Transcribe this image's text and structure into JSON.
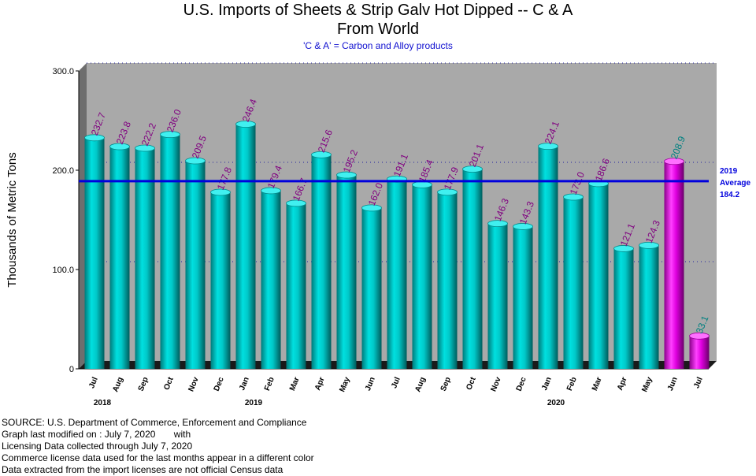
{
  "chart_data": {
    "type": "bar",
    "title": "U.S. Imports of Sheets & Strip Galv Hot Dipped -- C & A",
    "title_line2": "From World",
    "subtitle": "'C & A' = Carbon and Alloy products",
    "ylabel": "Thousands of Metric Tons",
    "ylim": [
      0,
      300
    ],
    "yticks": [
      "0",
      "100.0",
      "200.0",
      "300.0"
    ],
    "grid": true,
    "categories": [
      "Jul",
      "Aug",
      "Sep",
      "Oct",
      "Nov",
      "Dec",
      "Jan",
      "Feb",
      "Mar",
      "Apr",
      "May",
      "Jun",
      "Jul",
      "Aug",
      "Sep",
      "Oct",
      "Nov",
      "Dec",
      "Jan",
      "Feb",
      "Mar",
      "Apr",
      "May",
      "Jun",
      "Jul"
    ],
    "values": [
      232.7,
      223.8,
      222.2,
      236.0,
      209.5,
      177.8,
      246.4,
      179.4,
      166.7,
      215.6,
      195.2,
      162.0,
      191.1,
      185.4,
      177.9,
      201.1,
      146.3,
      143.3,
      224.1,
      173.0,
      186.6,
      121.1,
      124.3,
      208.9,
      33.1
    ],
    "value_labels": [
      "232.7",
      "223.8",
      "222.2",
      "236.0",
      "209.5",
      "177.8",
      "246.4",
      "179.4",
      "166.7",
      "215.6",
      "195.2",
      "162.0",
      "191.1",
      "185.4",
      "177.9",
      "201.1",
      "146.3",
      "143.3",
      "224.1",
      "173.0",
      "186.6",
      "121.1",
      "124.3",
      "208.9",
      "33.1"
    ],
    "license_data_from_index": 23,
    "years": [
      {
        "label": "2018",
        "index": 0
      },
      {
        "label": "2019",
        "index": 6
      },
      {
        "label": "2020",
        "index": 18
      }
    ],
    "reference_line": {
      "value": 184.2,
      "label_lines": [
        "2019",
        "Average",
        "184.2"
      ]
    },
    "colors": {
      "census_bar": "#00b4b4",
      "license_bar": "#d000d0",
      "census_label": "#800080",
      "license_label": "#008080",
      "plot_bg": "#a9a9a9",
      "average_line": "#0000dd"
    }
  },
  "footer": {
    "lines": [
      "SOURCE: U.S. Department of Commerce, Enforcement and Compliance",
      "Graph last modified on : July 7, 2020       with",
      "Licensing Data collected through July 7, 2020",
      "Commerce license data used for the last months appear in a different color",
      "Data extracted from the import licenses are not official Census data"
    ]
  }
}
